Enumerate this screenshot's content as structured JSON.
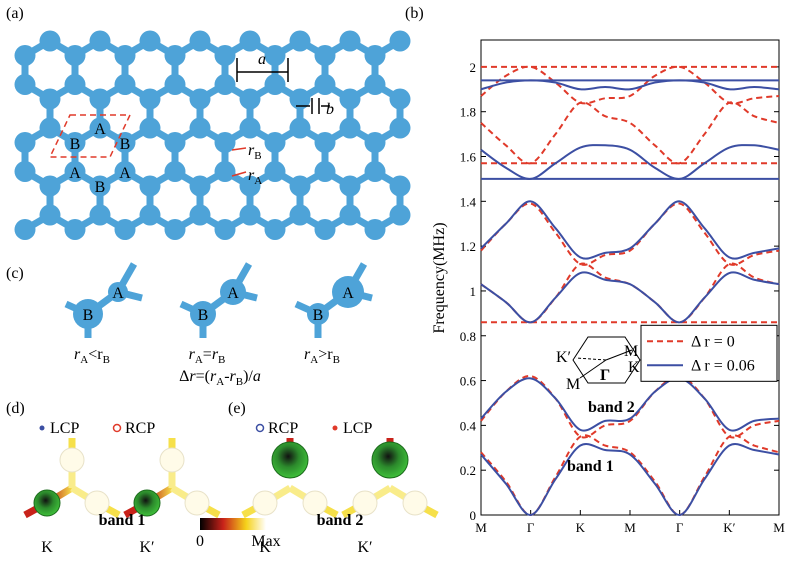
{
  "panel_a": {
    "label": "(a)",
    "lattice_constant": "a",
    "bond_width": "b",
    "sites": [
      "A",
      "B",
      "B",
      "A",
      "A",
      "B"
    ],
    "radius_labels": [
      [
        {
          "t": "r",
          "i": true
        },
        {
          "t": "B",
          "sub": true
        }
      ],
      [
        {
          "t": "r",
          "i": true
        },
        {
          "t": "A",
          "sub": true
        }
      ]
    ]
  },
  "panel_b_label": "(b)",
  "chart_data": {
    "type": "line",
    "ylabel": "Frequency(MHz)",
    "x": [
      0,
      0.5,
      1,
      1.5,
      2,
      2.5,
      3,
      3.5,
      4,
      4.5,
      5,
      5.5,
      6
    ],
    "xlim": [
      0,
      6
    ],
    "xticks": [
      {
        "value": 0,
        "label": "M"
      },
      {
        "value": 1,
        "label": "Γ"
      },
      {
        "value": 2,
        "label": "K"
      },
      {
        "value": 3,
        "label": "M"
      },
      {
        "value": 4,
        "label": "Γ"
      },
      {
        "value": 5,
        "label": "K′"
      },
      {
        "value": 6,
        "label": "M"
      }
    ],
    "ylim": [
      0,
      2.12
    ],
    "yticks": [
      0,
      0.2,
      0.4,
      0.6,
      0.8,
      1,
      1.2,
      1.4,
      1.6,
      1.8,
      2
    ],
    "legend": "center right",
    "series": [
      {
        "name": "Δ r = 0",
        "color": "#e03a2a",
        "dash": true,
        "bands": [
          [
            0.28,
            0.15,
            0,
            0.17,
            0.35,
            0.31,
            0.28,
            0.15,
            0,
            0.17,
            0.35,
            0.31,
            0.28
          ],
          [
            0.42,
            0.55,
            0.62,
            0.52,
            0.35,
            0.4,
            0.42,
            0.55,
            0.62,
            0.52,
            0.35,
            0.4,
            0.42
          ],
          [
            0.86,
            0.86,
            0.86,
            0.86,
            0.86,
            0.86,
            0.86,
            0.86,
            0.86,
            0.86,
            0.86,
            0.86,
            0.86
          ],
          [
            1.03,
            0.95,
            0.86,
            0.97,
            1.12,
            1.06,
            1.03,
            0.95,
            0.86,
            0.97,
            1.12,
            1.06,
            1.03
          ],
          [
            1.18,
            1.3,
            1.39,
            1.26,
            1.12,
            1.16,
            1.18,
            1.3,
            1.39,
            1.26,
            1.12,
            1.16,
            1.18
          ],
          [
            1.57,
            1.57,
            1.57,
            1.57,
            1.57,
            1.57,
            1.57,
            1.57,
            1.57,
            1.57,
            1.57,
            1.57,
            1.57
          ],
          [
            1.75,
            1.65,
            1.57,
            1.7,
            1.84,
            1.78,
            1.75,
            1.65,
            1.57,
            1.7,
            1.84,
            1.78,
            1.75
          ],
          [
            1.87,
            1.96,
            2,
            1.93,
            1.84,
            1.86,
            1.87,
            1.96,
            2,
            1.93,
            1.84,
            1.86,
            1.87
          ],
          [
            2,
            2,
            2,
            2,
            2,
            2,
            2,
            2,
            2,
            2,
            2,
            2,
            2
          ]
        ]
      },
      {
        "name": "Δ r = 0.06",
        "color": "#3c4fa3",
        "dash": false,
        "bands": [
          [
            0.27,
            0.14,
            0,
            0.16,
            0.31,
            0.29,
            0.27,
            0.14,
            0,
            0.16,
            0.31,
            0.29,
            0.27
          ],
          [
            0.43,
            0.55,
            0.61,
            0.52,
            0.38,
            0.42,
            0.43,
            0.55,
            0.61,
            0.52,
            0.38,
            0.42,
            0.43
          ],
          [
            1.03,
            0.95,
            0.86,
            0.97,
            1.08,
            1.05,
            1.03,
            0.95,
            0.86,
            0.97,
            1.08,
            1.05,
            1.03
          ],
          [
            1.19,
            1.3,
            1.4,
            1.28,
            1.15,
            1.17,
            1.19,
            1.3,
            1.4,
            1.28,
            1.15,
            1.17,
            1.19
          ],
          [
            1.5,
            1.5,
            1.5,
            1.5,
            1.5,
            1.5,
            1.5,
            1.5,
            1.5,
            1.5,
            1.5,
            1.5,
            1.5
          ],
          [
            1.63,
            1.55,
            1.5,
            1.57,
            1.64,
            1.65,
            1.63,
            1.55,
            1.5,
            1.57,
            1.64,
            1.65,
            1.63
          ],
          [
            1.9,
            1.93,
            1.94,
            1.93,
            1.9,
            1.91,
            1.9,
            1.93,
            1.94,
            1.93,
            1.9,
            1.91,
            1.9
          ],
          [
            1.94,
            1.94,
            1.94,
            1.94,
            1.94,
            1.94,
            1.94,
            1.94,
            1.94,
            1.94,
            1.94,
            1.94,
            1.94
          ]
        ]
      }
    ],
    "inset_labels": [
      "K′",
      "M",
      "K",
      "M",
      "Γ"
    ],
    "band_labels": [
      "band 2",
      "band 1"
    ]
  },
  "panel_c": {
    "label": "(c)",
    "trimers": [
      {
        "sites": [
          "B",
          "A"
        ],
        "caption": [
          {
            "t": "r",
            "i": true
          },
          {
            "t": "A",
            "sub": true
          },
          {
            "t": "<r"
          },
          {
            "t": "B",
            "sub": true
          }
        ]
      },
      {
        "sites": [
          "B",
          "A"
        ],
        "caption": [
          {
            "t": "r",
            "i": true
          },
          {
            "t": "A",
            "sub": true
          },
          {
            "t": "="
          },
          {
            "t": "r",
            "i": true
          },
          {
            "t": "B",
            "sub": true
          }
        ]
      },
      {
        "sites": [
          "B",
          "A"
        ],
        "caption": [
          {
            "t": "r",
            "i": true
          },
          {
            "t": "A",
            "sub": true
          },
          {
            "t": ">r"
          },
          {
            "t": "B",
            "sub": true
          }
        ]
      }
    ],
    "definition": [
      {
        "t": "Δ"
      },
      {
        "t": "r",
        "i": true
      },
      {
        "t": "=("
      },
      {
        "t": "r",
        "i": true
      },
      {
        "t": "A",
        "sub": true
      },
      {
        "t": "-"
      },
      {
        "t": "r",
        "i": true
      },
      {
        "t": "B",
        "sub": true
      },
      {
        "t": ")/"
      },
      {
        "t": "a",
        "i": true
      }
    ]
  },
  "panel_d": {
    "label": "(d)",
    "legend": [
      "LCP",
      "RCP"
    ],
    "band": "band 1",
    "points": [
      "K",
      "K′"
    ]
  },
  "panel_e": {
    "label": "(e)",
    "legend": [
      "RCP",
      "LCP"
    ],
    "band": "band 2",
    "points": [
      "K",
      "K′"
    ]
  },
  "colorbar": {
    "min": "0",
    "max": "Max"
  }
}
